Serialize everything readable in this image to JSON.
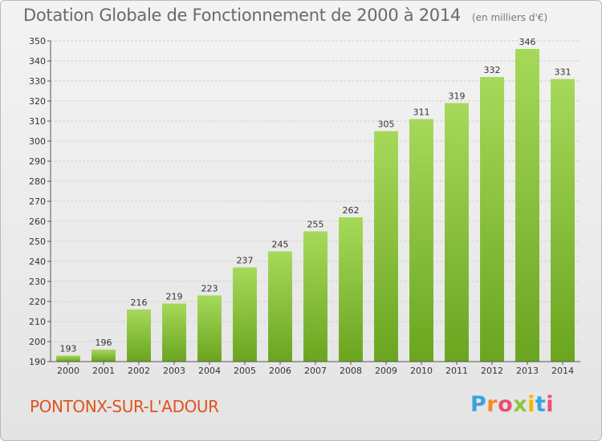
{
  "header": {
    "title": "Dotation Globale de Fonctionnement de 2000 à 2014",
    "unit": "(en milliers d'€)"
  },
  "footer": {
    "commune": "PONTONX-SUR-L'ADOUR",
    "logo_letters": [
      "P",
      "r",
      "o",
      "x",
      "i",
      "t",
      "i"
    ]
  },
  "colors": {
    "bar_light": "#a6d95a",
    "bar_dark": "#6aa51f",
    "grid": "#d0d0d0",
    "commune_text": "#e0531f"
  },
  "chart_data": {
    "type": "bar",
    "title": "Dotation Globale de Fonctionnement de 2000 à 2014",
    "subtitle": "(en milliers d'€)",
    "xlabel": "",
    "ylabel": "",
    "categories": [
      "2000",
      "2001",
      "2002",
      "2003",
      "2004",
      "2005",
      "2006",
      "2007",
      "2008",
      "2009",
      "2010",
      "2011",
      "2012",
      "2013",
      "2014"
    ],
    "values": [
      193,
      196,
      216,
      219,
      223,
      237,
      245,
      255,
      262,
      305,
      311,
      319,
      332,
      346,
      331
    ],
    "ylim": [
      190,
      350
    ],
    "yticks": [
      190,
      200,
      210,
      220,
      230,
      240,
      250,
      260,
      270,
      280,
      290,
      300,
      310,
      320,
      330,
      340,
      350
    ],
    "grid": true,
    "legend": "none"
  }
}
